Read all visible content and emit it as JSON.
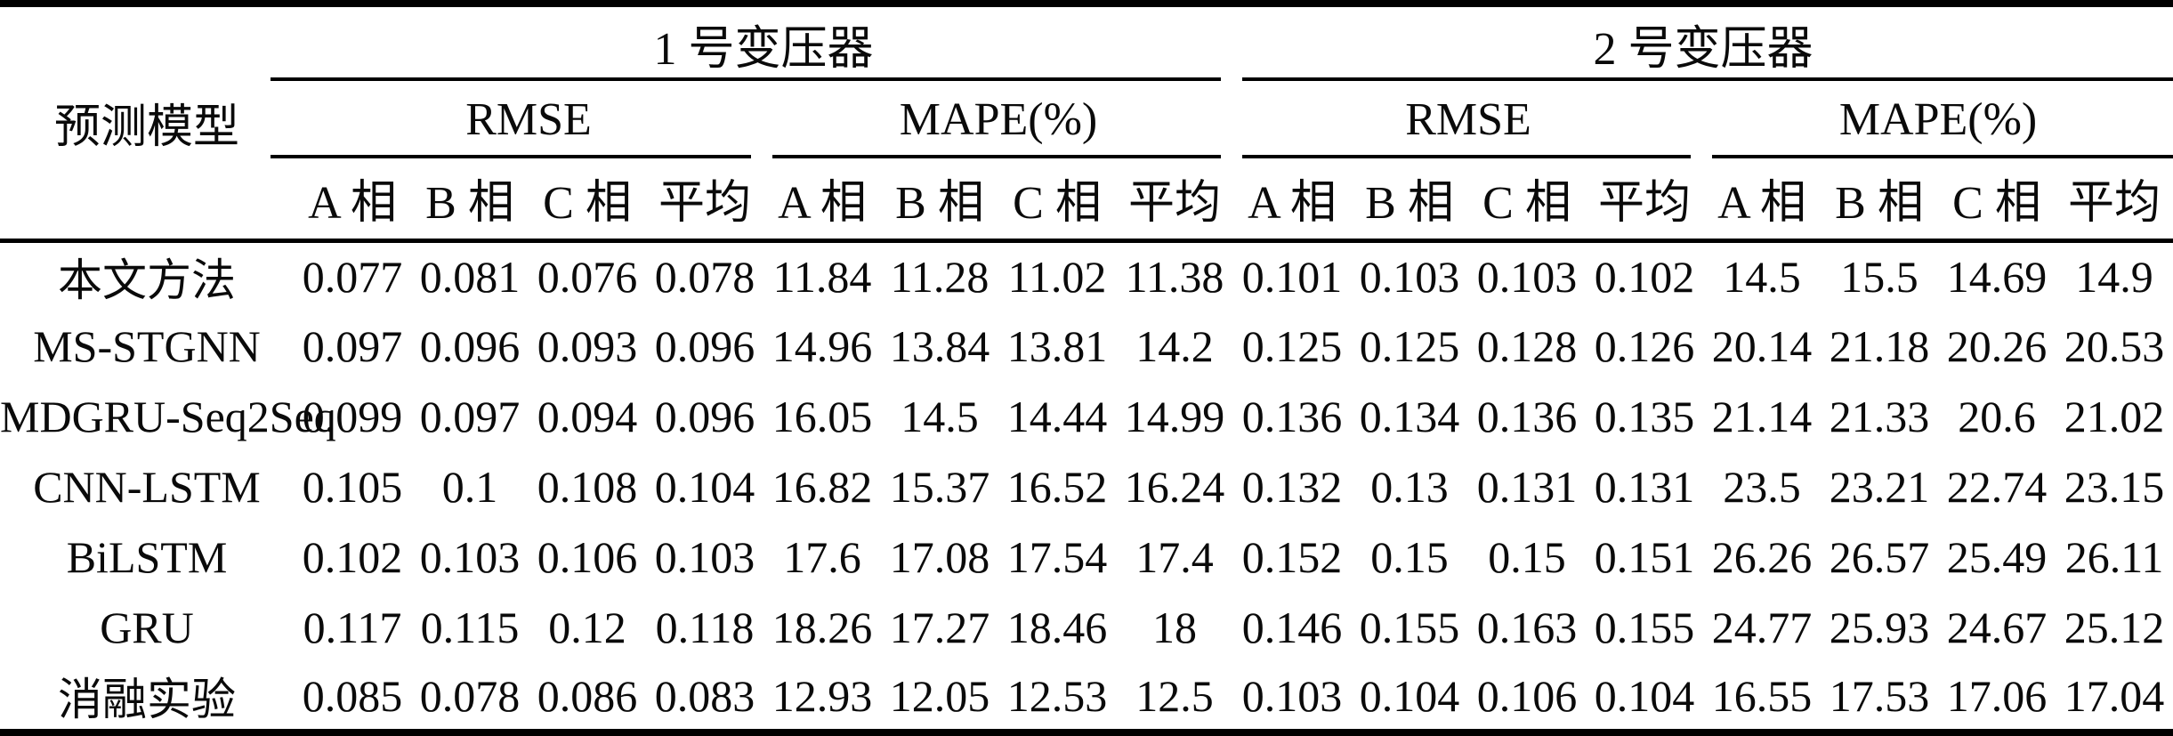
{
  "table": {
    "row_header": "预测模型",
    "groups": [
      {
        "label": "1 号变压器",
        "metrics": [
          "RMSE",
          "MAPE(%)"
        ]
      },
      {
        "label": "2 号变压器",
        "metrics": [
          "RMSE",
          "MAPE(%)"
        ]
      }
    ],
    "phase_headers": [
      "A 相",
      "B 相",
      "C 相",
      "平均"
    ],
    "rows": [
      {
        "model": "本文方法",
        "values": [
          "0.077",
          "0.081",
          "0.076",
          "0.078",
          "11.84",
          "11.28",
          "11.02",
          "11.38",
          "0.101",
          "0.103",
          "0.103",
          "0.102",
          "14.5",
          "15.5",
          "14.69",
          "14.9"
        ]
      },
      {
        "model": "MS-STGNN",
        "values": [
          "0.097",
          "0.096",
          "0.093",
          "0.096",
          "14.96",
          "13.84",
          "13.81",
          "14.2",
          "0.125",
          "0.125",
          "0.128",
          "0.126",
          "20.14",
          "21.18",
          "20.26",
          "20.53"
        ]
      },
      {
        "model": "MDGRU-Seq2Seq",
        "values": [
          "0.099",
          "0.097",
          "0.094",
          "0.096",
          "16.05",
          "14.5",
          "14.44",
          "14.99",
          "0.136",
          "0.134",
          "0.136",
          "0.135",
          "21.14",
          "21.33",
          "20.6",
          "21.02"
        ]
      },
      {
        "model": "CNN-LSTM",
        "values": [
          "0.105",
          "0.1",
          "0.108",
          "0.104",
          "16.82",
          "15.37",
          "16.52",
          "16.24",
          "0.132",
          "0.13",
          "0.131",
          "0.131",
          "23.5",
          "23.21",
          "22.74",
          "23.15"
        ]
      },
      {
        "model": "BiLSTM",
        "values": [
          "0.102",
          "0.103",
          "0.106",
          "0.103",
          "17.6",
          "17.08",
          "17.54",
          "17.4",
          "0.152",
          "0.15",
          "0.15",
          "0.151",
          "26.26",
          "26.57",
          "25.49",
          "26.11"
        ]
      },
      {
        "model": "GRU",
        "values": [
          "0.117",
          "0.115",
          "0.12",
          "0.118",
          "18.26",
          "17.27",
          "18.46",
          "18",
          "0.146",
          "0.155",
          "0.163",
          "0.155",
          "24.77",
          "25.93",
          "24.67",
          "25.12"
        ]
      },
      {
        "model": "消融实验",
        "values": [
          "0.085",
          "0.078",
          "0.086",
          "0.083",
          "12.93",
          "12.05",
          "12.53",
          "12.5",
          "0.103",
          "0.104",
          "0.106",
          "0.104",
          "16.55",
          "17.53",
          "17.06",
          "17.04"
        ]
      }
    ]
  },
  "colors": {
    "background": "#ffffff",
    "text": "#0a0a0a",
    "rule": "#000000"
  }
}
